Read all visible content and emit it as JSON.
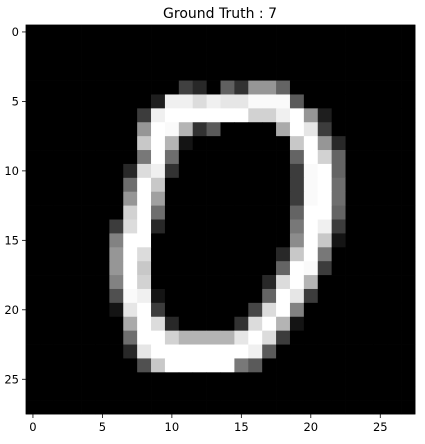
{
  "chart_data": {
    "type": "heatmap",
    "title": "Ground Truth : 7",
    "xlabel": "",
    "ylabel": "",
    "colormap": "gray",
    "value_range": [
      0,
      255
    ],
    "xlim": [
      -0.5,
      27.5
    ],
    "ylim": [
      27.5,
      -0.5
    ],
    "xticks": [
      "0",
      "5",
      "10",
      "15",
      "20",
      "25"
    ],
    "yticks": [
      "0",
      "5",
      "10",
      "15",
      "20",
      "25"
    ],
    "grid": false,
    "rows": 28,
    "cols": 28,
    "pixels": [
      [
        0,
        0,
        0,
        0,
        0,
        0,
        0,
        0,
        0,
        0,
        0,
        0,
        0,
        0,
        0,
        0,
        0,
        0,
        0,
        0,
        0,
        0,
        0,
        0,
        0,
        0,
        0,
        0
      ],
      [
        0,
        0,
        0,
        0,
        0,
        0,
        0,
        0,
        0,
        0,
        0,
        0,
        0,
        0,
        0,
        0,
        0,
        0,
        0,
        0,
        0,
        0,
        0,
        0,
        0,
        0,
        0,
        0
      ],
      [
        0,
        0,
        0,
        0,
        0,
        0,
        0,
        0,
        0,
        0,
        0,
        0,
        0,
        0,
        0,
        0,
        0,
        0,
        0,
        0,
        0,
        0,
        0,
        0,
        0,
        0,
        0,
        0
      ],
      [
        0,
        0,
        0,
        0,
        0,
        0,
        0,
        0,
        0,
        0,
        0,
        0,
        0,
        0,
        0,
        0,
        0,
        0,
        0,
        0,
        0,
        0,
        0,
        0,
        0,
        0,
        0,
        0
      ],
      [
        0,
        0,
        0,
        0,
        0,
        0,
        0,
        0,
        0,
        0,
        0,
        64,
        40,
        0,
        96,
        50,
        150,
        150,
        100,
        0,
        0,
        0,
        0,
        0,
        0,
        0,
        0,
        0
      ],
      [
        0,
        0,
        0,
        0,
        0,
        0,
        0,
        0,
        0,
        30,
        240,
        240,
        220,
        240,
        230,
        230,
        250,
        250,
        250,
        90,
        0,
        0,
        0,
        0,
        0,
        0,
        0,
        0
      ],
      [
        0,
        0,
        0,
        0,
        0,
        0,
        0,
        0,
        60,
        240,
        255,
        255,
        255,
        255,
        255,
        255,
        210,
        210,
        240,
        255,
        150,
        30,
        0,
        0,
        0,
        0,
        0,
        0
      ],
      [
        0,
        0,
        0,
        0,
        0,
        0,
        0,
        0,
        150,
        255,
        250,
        180,
        50,
        90,
        0,
        0,
        0,
        0,
        170,
        255,
        230,
        60,
        0,
        0,
        0,
        0,
        0,
        0
      ],
      [
        0,
        0,
        0,
        0,
        0,
        0,
        0,
        0,
        200,
        255,
        180,
        20,
        0,
        0,
        0,
        0,
        0,
        0,
        0,
        200,
        255,
        150,
        40,
        0,
        0,
        0,
        0,
        0
      ],
      [
        0,
        0,
        0,
        0,
        0,
        0,
        0,
        0,
        120,
        255,
        110,
        0,
        0,
        0,
        0,
        0,
        0,
        0,
        0,
        100,
        255,
        210,
        100,
        0,
        0,
        0,
        0,
        0
      ],
      [
        0,
        0,
        0,
        0,
        0,
        0,
        0,
        40,
        220,
        240,
        50,
        0,
        0,
        0,
        0,
        0,
        0,
        0,
        0,
        60,
        250,
        255,
        100,
        0,
        0,
        0,
        0,
        0
      ],
      [
        0,
        0,
        0,
        0,
        0,
        0,
        0,
        110,
        255,
        200,
        0,
        0,
        0,
        0,
        0,
        0,
        0,
        0,
        0,
        60,
        250,
        255,
        110,
        0,
        0,
        0,
        0,
        0
      ],
      [
        0,
        0,
        0,
        0,
        0,
        0,
        0,
        150,
        255,
        160,
        0,
        0,
        0,
        0,
        0,
        0,
        0,
        0,
        0,
        60,
        250,
        255,
        110,
        0,
        0,
        0,
        0,
        0
      ],
      [
        0,
        0,
        0,
        0,
        0,
        0,
        0,
        210,
        255,
        110,
        0,
        0,
        0,
        0,
        0,
        0,
        0,
        0,
        0,
        100,
        255,
        255,
        100,
        0,
        0,
        0,
        0,
        0
      ],
      [
        0,
        0,
        0,
        0,
        0,
        0,
        60,
        220,
        255,
        40,
        0,
        0,
        0,
        0,
        0,
        0,
        0,
        0,
        0,
        120,
        255,
        240,
        60,
        0,
        0,
        0,
        0,
        0
      ],
      [
        0,
        0,
        0,
        0,
        0,
        0,
        130,
        255,
        255,
        0,
        0,
        0,
        0,
        0,
        0,
        0,
        0,
        0,
        0,
        140,
        255,
        200,
        20,
        0,
        0,
        0,
        0,
        0
      ],
      [
        0,
        0,
        0,
        0,
        0,
        0,
        150,
        255,
        220,
        0,
        0,
        0,
        0,
        0,
        0,
        0,
        0,
        0,
        40,
        200,
        255,
        120,
        0,
        0,
        0,
        0,
        0,
        0
      ],
      [
        0,
        0,
        0,
        0,
        0,
        0,
        150,
        255,
        200,
        0,
        0,
        0,
        0,
        0,
        0,
        0,
        0,
        0,
        100,
        255,
        250,
        60,
        0,
        0,
        0,
        0,
        0,
        0
      ],
      [
        0,
        0,
        0,
        0,
        0,
        0,
        130,
        255,
        210,
        0,
        0,
        0,
        0,
        0,
        0,
        0,
        0,
        40,
        220,
        255,
        180,
        0,
        0,
        0,
        0,
        0,
        0,
        0
      ],
      [
        0,
        0,
        0,
        0,
        0,
        0,
        80,
        250,
        240,
        20,
        0,
        0,
        0,
        0,
        0,
        0,
        0,
        100,
        255,
        230,
        60,
        0,
        0,
        0,
        0,
        0,
        0,
        0
      ],
      [
        0,
        0,
        0,
        0,
        0,
        0,
        20,
        230,
        255,
        60,
        0,
        0,
        0,
        0,
        0,
        0,
        70,
        220,
        255,
        130,
        0,
        0,
        0,
        0,
        0,
        0,
        0,
        0
      ],
      [
        0,
        0,
        0,
        0,
        0,
        0,
        0,
        170,
        255,
        220,
        40,
        0,
        0,
        0,
        0,
        50,
        220,
        255,
        180,
        20,
        0,
        0,
        0,
        0,
        0,
        0,
        0,
        0
      ],
      [
        0,
        0,
        0,
        0,
        0,
        0,
        0,
        110,
        255,
        255,
        210,
        180,
        180,
        180,
        180,
        230,
        255,
        220,
        60,
        0,
        0,
        0,
        0,
        0,
        0,
        0,
        0,
        0
      ],
      [
        0,
        0,
        0,
        0,
        0,
        0,
        0,
        40,
        230,
        255,
        255,
        255,
        255,
        255,
        255,
        255,
        240,
        90,
        0,
        0,
        0,
        0,
        0,
        0,
        0,
        0,
        0,
        0
      ],
      [
        0,
        0,
        0,
        0,
        0,
        0,
        0,
        0,
        80,
        200,
        255,
        255,
        255,
        255,
        255,
        120,
        90,
        0,
        0,
        0,
        0,
        0,
        0,
        0,
        0,
        0,
        0,
        0
      ],
      [
        0,
        0,
        0,
        0,
        0,
        0,
        0,
        0,
        0,
        0,
        0,
        0,
        0,
        0,
        0,
        0,
        0,
        0,
        0,
        0,
        0,
        0,
        0,
        0,
        0,
        0,
        0,
        0
      ],
      [
        0,
        0,
        0,
        0,
        0,
        0,
        0,
        0,
        0,
        0,
        0,
        0,
        0,
        0,
        0,
        0,
        0,
        0,
        0,
        0,
        0,
        0,
        0,
        0,
        0,
        0,
        0,
        0
      ],
      [
        0,
        0,
        0,
        0,
        0,
        0,
        0,
        0,
        0,
        0,
        0,
        0,
        0,
        0,
        0,
        0,
        0,
        0,
        0,
        0,
        0,
        0,
        0,
        0,
        0,
        0,
        0,
        0
      ]
    ]
  }
}
